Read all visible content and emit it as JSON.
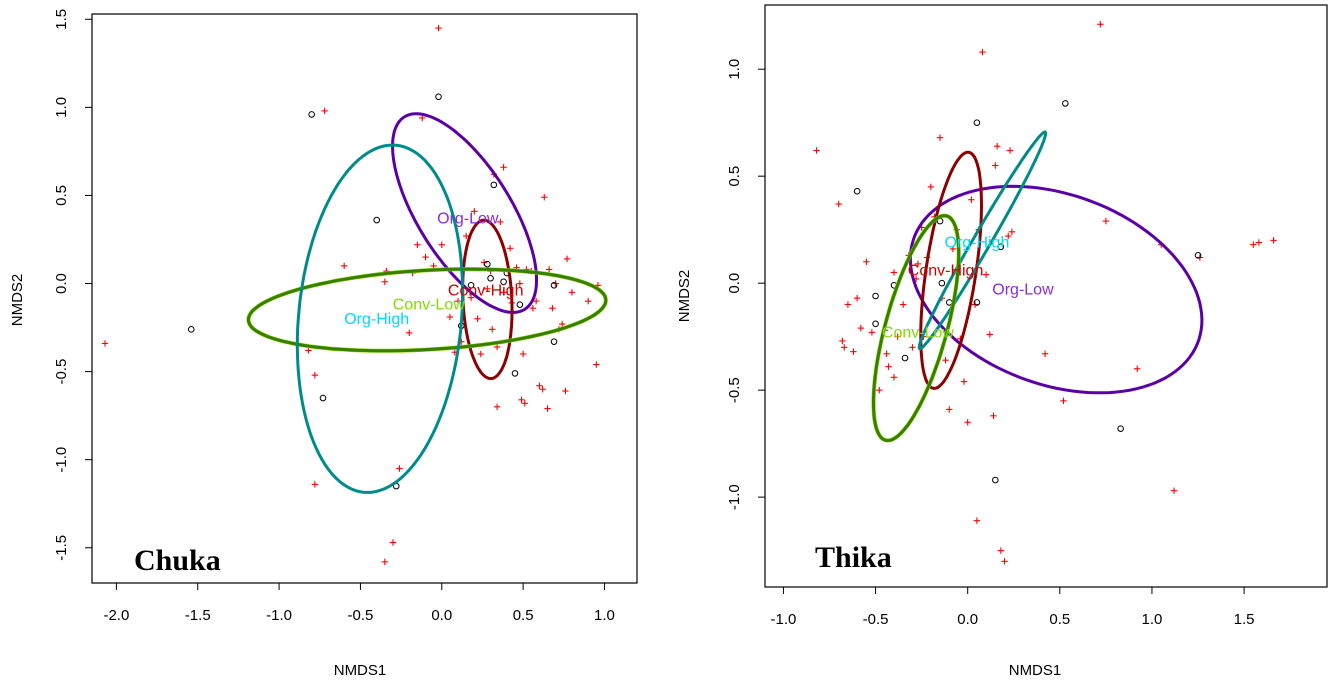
{
  "chart_data": [
    {
      "type": "scatter",
      "site_label": "Chuka",
      "xlabel": "NMDS1",
      "ylabel": "NMDS2",
      "xlim": [
        -2.15,
        1.2
      ],
      "ylim": [
        -1.7,
        1.53
      ],
      "xticks": [
        -2.0,
        -1.5,
        -1.0,
        -0.5,
        0.0,
        0.5,
        1.0
      ],
      "xtick_labels": [
        "-2.0",
        "-1.5",
        "-1.0",
        "-0.5",
        "0.0",
        "0.5",
        "1.0"
      ],
      "yticks": [
        -1.5,
        -1.0,
        -0.5,
        0.0,
        0.5,
        1.0,
        1.5
      ],
      "ytick_labels": [
        "-1.5",
        "-1.0",
        "-0.5",
        "0.0",
        "0.5",
        "1.0",
        "1.5"
      ],
      "grid": false,
      "series": [
        {
          "name": "sites",
          "marker": "circle",
          "color": "#000000",
          "points": [
            [
              -1.54,
              -0.26
            ],
            [
              -0.8,
              0.96
            ],
            [
              -0.73,
              -0.65
            ],
            [
              -0.4,
              0.36
            ],
            [
              -0.28,
              -1.15
            ],
            [
              -0.02,
              1.06
            ],
            [
              0.12,
              -0.24
            ],
            [
              0.3,
              0.03
            ],
            [
              0.32,
              0.56
            ],
            [
              0.38,
              0.01
            ],
            [
              0.4,
              0.06
            ],
            [
              0.45,
              -0.51
            ],
            [
              0.48,
              -0.12
            ],
            [
              0.69,
              -0.33
            ],
            [
              0.69,
              -0.01
            ],
            [
              0.28,
              0.11
            ],
            [
              0.18,
              -0.01
            ]
          ]
        },
        {
          "name": "species",
          "marker": "plus",
          "color": "#ff0000",
          "points": [
            [
              -2.07,
              -0.34
            ],
            [
              -0.82,
              -0.38
            ],
            [
              -0.78,
              -0.52
            ],
            [
              -0.78,
              -1.14
            ],
            [
              -0.72,
              0.98
            ],
            [
              -0.6,
              0.1
            ],
            [
              -0.35,
              0.01
            ],
            [
              -0.35,
              -1.58
            ],
            [
              -0.34,
              0.07
            ],
            [
              -0.3,
              -1.47
            ],
            [
              -0.26,
              -1.05
            ],
            [
              -0.2,
              -0.28
            ],
            [
              -0.18,
              0.06
            ],
            [
              -0.15,
              0.22
            ],
            [
              -0.12,
              0.94
            ],
            [
              -0.1,
              0.15
            ],
            [
              -0.05,
              0.1
            ],
            [
              -0.02,
              1.45
            ],
            [
              0.0,
              0.22
            ],
            [
              0.05,
              -0.19
            ],
            [
              0.08,
              -0.39
            ],
            [
              0.1,
              -0.1
            ],
            [
              0.12,
              -0.33
            ],
            [
              0.15,
              0.27
            ],
            [
              0.18,
              -0.08
            ],
            [
              0.2,
              0.41
            ],
            [
              0.22,
              -0.2
            ],
            [
              0.24,
              -0.4
            ],
            [
              0.26,
              0.12
            ],
            [
              0.28,
              -0.03
            ],
            [
              0.3,
              0.07
            ],
            [
              0.31,
              -0.26
            ],
            [
              0.32,
              0.62
            ],
            [
              0.34,
              -0.36
            ],
            [
              0.34,
              -0.7
            ],
            [
              0.36,
              0.35
            ],
            [
              0.38,
              0.66
            ],
            [
              0.38,
              -0.05
            ],
            [
              0.42,
              0.2
            ],
            [
              0.43,
              -0.11
            ],
            [
              0.46,
              0.09
            ],
            [
              0.48,
              0.0
            ],
            [
              0.49,
              -0.66
            ],
            [
              0.5,
              -0.4
            ],
            [
              0.51,
              -0.68
            ],
            [
              0.52,
              0.08
            ],
            [
              0.55,
              0.07
            ],
            [
              0.56,
              -0.14
            ],
            [
              0.58,
              -0.1
            ],
            [
              0.6,
              -0.58
            ],
            [
              0.62,
              -0.6
            ],
            [
              0.63,
              0.49
            ],
            [
              0.65,
              -0.71
            ],
            [
              0.66,
              0.08
            ],
            [
              0.68,
              -0.14
            ],
            [
              0.7,
              0.0
            ],
            [
              0.72,
              -0.26
            ],
            [
              0.74,
              -0.23
            ],
            [
              0.76,
              -0.61
            ],
            [
              0.77,
              0.14
            ],
            [
              0.8,
              -0.05
            ],
            [
              0.95,
              -0.46
            ],
            [
              0.96,
              -0.01
            ],
            [
              0.9,
              -0.1
            ]
          ]
        }
      ],
      "ellipses": [
        {
          "label": "Org-Low",
          "color": "#5b00a6",
          "label_color": "#8a2be2",
          "cx": 0.14,
          "cy": 0.4,
          "rx": 0.66,
          "ry": 0.28,
          "angle_deg": -55,
          "label_at": [
            0.16,
            0.37
          ]
        },
        {
          "label": "Conv-High",
          "color": "#8b0000",
          "label_color": "#d00000",
          "cx": 0.28,
          "cy": -0.09,
          "rx": 0.45,
          "ry": 0.15,
          "angle_deg": -87,
          "label_at": [
            0.27,
            -0.04
          ]
        },
        {
          "label": "Conv-Low",
          "color": "#3a7d00",
          "label_color": "#7fdd00",
          "cx": -0.09,
          "cy": -0.15,
          "rx": 1.1,
          "ry": 0.225,
          "angle_deg": 3,
          "label_at": [
            -0.08,
            -0.12
          ]
        },
        {
          "label": "Org-High",
          "color": "#008b8b",
          "label_color": "#00d8ff",
          "cx": -0.38,
          "cy": -0.2,
          "rx": 0.99,
          "ry": 0.5,
          "angle_deg": -96,
          "label_at": [
            -0.4,
            -0.2
          ]
        }
      ]
    },
    {
      "type": "scatter",
      "site_label": "Thika",
      "xlabel": "NMDS1",
      "ylabel": "NMDS2",
      "xlim": [
        -1.1,
        1.95
      ],
      "ylim": [
        -1.42,
        1.3
      ],
      "xticks": [
        -1.0,
        -0.5,
        0.0,
        0.5,
        1.0,
        1.5
      ],
      "xtick_labels": [
        "-1.0",
        "-0.5",
        "0.0",
        "0.5",
        "1.0",
        "1.5"
      ],
      "yticks": [
        -1.0,
        -0.5,
        0.0,
        0.5,
        1.0
      ],
      "ytick_labels": [
        "-1.0",
        "-0.5",
        "0.0",
        "0.5",
        "1.0"
      ],
      "grid": false,
      "series": [
        {
          "name": "sites",
          "marker": "circle",
          "color": "#000000",
          "points": [
            [
              -0.6,
              0.43
            ],
            [
              -0.5,
              -0.06
            ],
            [
              -0.5,
              -0.19
            ],
            [
              -0.4,
              -0.01
            ],
            [
              -0.34,
              -0.35
            ],
            [
              -0.15,
              0.29
            ],
            [
              -0.14,
              0.0
            ],
            [
              -0.1,
              -0.09
            ],
            [
              0.05,
              0.75
            ],
            [
              0.05,
              -0.09
            ],
            [
              0.15,
              -0.92
            ],
            [
              0.18,
              0.17
            ],
            [
              0.53,
              0.84
            ],
            [
              0.83,
              -0.68
            ],
            [
              1.25,
              0.13
            ]
          ]
        },
        {
          "name": "species",
          "marker": "plus",
          "color": "#ff0000",
          "points": [
            [
              -0.82,
              0.62
            ],
            [
              -0.7,
              0.37
            ],
            [
              -0.68,
              -0.27
            ],
            [
              -0.67,
              -0.3
            ],
            [
              -0.65,
              -0.1
            ],
            [
              -0.62,
              -0.32
            ],
            [
              -0.6,
              -0.07
            ],
            [
              -0.58,
              -0.21
            ],
            [
              -0.55,
              0.1
            ],
            [
              -0.52,
              -0.23
            ],
            [
              -0.48,
              -0.5
            ],
            [
              -0.45,
              -0.22
            ],
            [
              -0.44,
              -0.33
            ],
            [
              -0.43,
              -0.39
            ],
            [
              -0.4,
              0.05
            ],
            [
              -0.4,
              -0.44
            ],
            [
              -0.38,
              -0.25
            ],
            [
              -0.35,
              -0.1
            ],
            [
              -0.32,
              0.13
            ],
            [
              -0.3,
              -0.3
            ],
            [
              -0.28,
              0.02
            ],
            [
              -0.27,
              0.09
            ],
            [
              -0.25,
              0.26
            ],
            [
              -0.24,
              -0.25
            ],
            [
              -0.22,
              0.12
            ],
            [
              -0.2,
              0.45
            ],
            [
              -0.18,
              0.31
            ],
            [
              -0.15,
              0.68
            ],
            [
              -0.14,
              -0.07
            ],
            [
              -0.12,
              -0.36
            ],
            [
              -0.1,
              -0.59
            ],
            [
              -0.08,
              0.16
            ],
            [
              -0.06,
              0.25
            ],
            [
              -0.04,
              -0.26
            ],
            [
              -0.02,
              -0.46
            ],
            [
              0.0,
              -0.65
            ],
            [
              0.02,
              0.39
            ],
            [
              0.04,
              -0.1
            ],
            [
              0.05,
              -1.11
            ],
            [
              0.06,
              0.25
            ],
            [
              0.08,
              1.08
            ],
            [
              0.1,
              0.04
            ],
            [
              0.12,
              -0.24
            ],
            [
              0.14,
              -0.62
            ],
            [
              0.15,
              0.55
            ],
            [
              0.16,
              0.64
            ],
            [
              0.18,
              -1.25
            ],
            [
              0.2,
              -1.3
            ],
            [
              0.22,
              0.22
            ],
            [
              0.23,
              0.62
            ],
            [
              0.24,
              0.24
            ],
            [
              0.42,
              -0.33
            ],
            [
              0.52,
              -0.55
            ],
            [
              0.72,
              1.21
            ],
            [
              0.75,
              0.29
            ],
            [
              0.92,
              -0.4
            ],
            [
              1.05,
              0.18
            ],
            [
              1.12,
              -0.97
            ],
            [
              1.26,
              0.12
            ],
            [
              1.55,
              0.18
            ],
            [
              1.58,
              0.19
            ],
            [
              1.66,
              0.2
            ]
          ]
        }
      ],
      "ellipses": [
        {
          "label": "Org-Low",
          "color": "#5b00a6",
          "label_color": "#8a2be2",
          "cx": 0.48,
          "cy": -0.03,
          "rx": 0.81,
          "ry": 0.45,
          "angle_deg": -15,
          "label_at": [
            0.3,
            -0.03
          ]
        },
        {
          "label": "Conv-High",
          "color": "#8b0000",
          "label_color": "#d00000",
          "cx": -0.09,
          "cy": 0.06,
          "rx": 0.56,
          "ry": 0.135,
          "angle_deg": 80,
          "label_at": [
            -0.12,
            0.06
          ]
        },
        {
          "label": "Org-High",
          "color": "#008b8b",
          "label_color": "#00d8ff",
          "cx": 0.08,
          "cy": 0.2,
          "rx": 0.61,
          "ry": 0.045,
          "angle_deg": 56,
          "label_at": [
            0.05,
            0.19
          ]
        },
        {
          "label": "Conv-Low",
          "color": "#3a7d00",
          "label_color": "#7fdd00",
          "cx": -0.28,
          "cy": -0.21,
          "rx": 0.55,
          "ry": 0.165,
          "angle_deg": 72,
          "label_at": [
            -0.27,
            -0.23
          ]
        }
      ]
    }
  ]
}
